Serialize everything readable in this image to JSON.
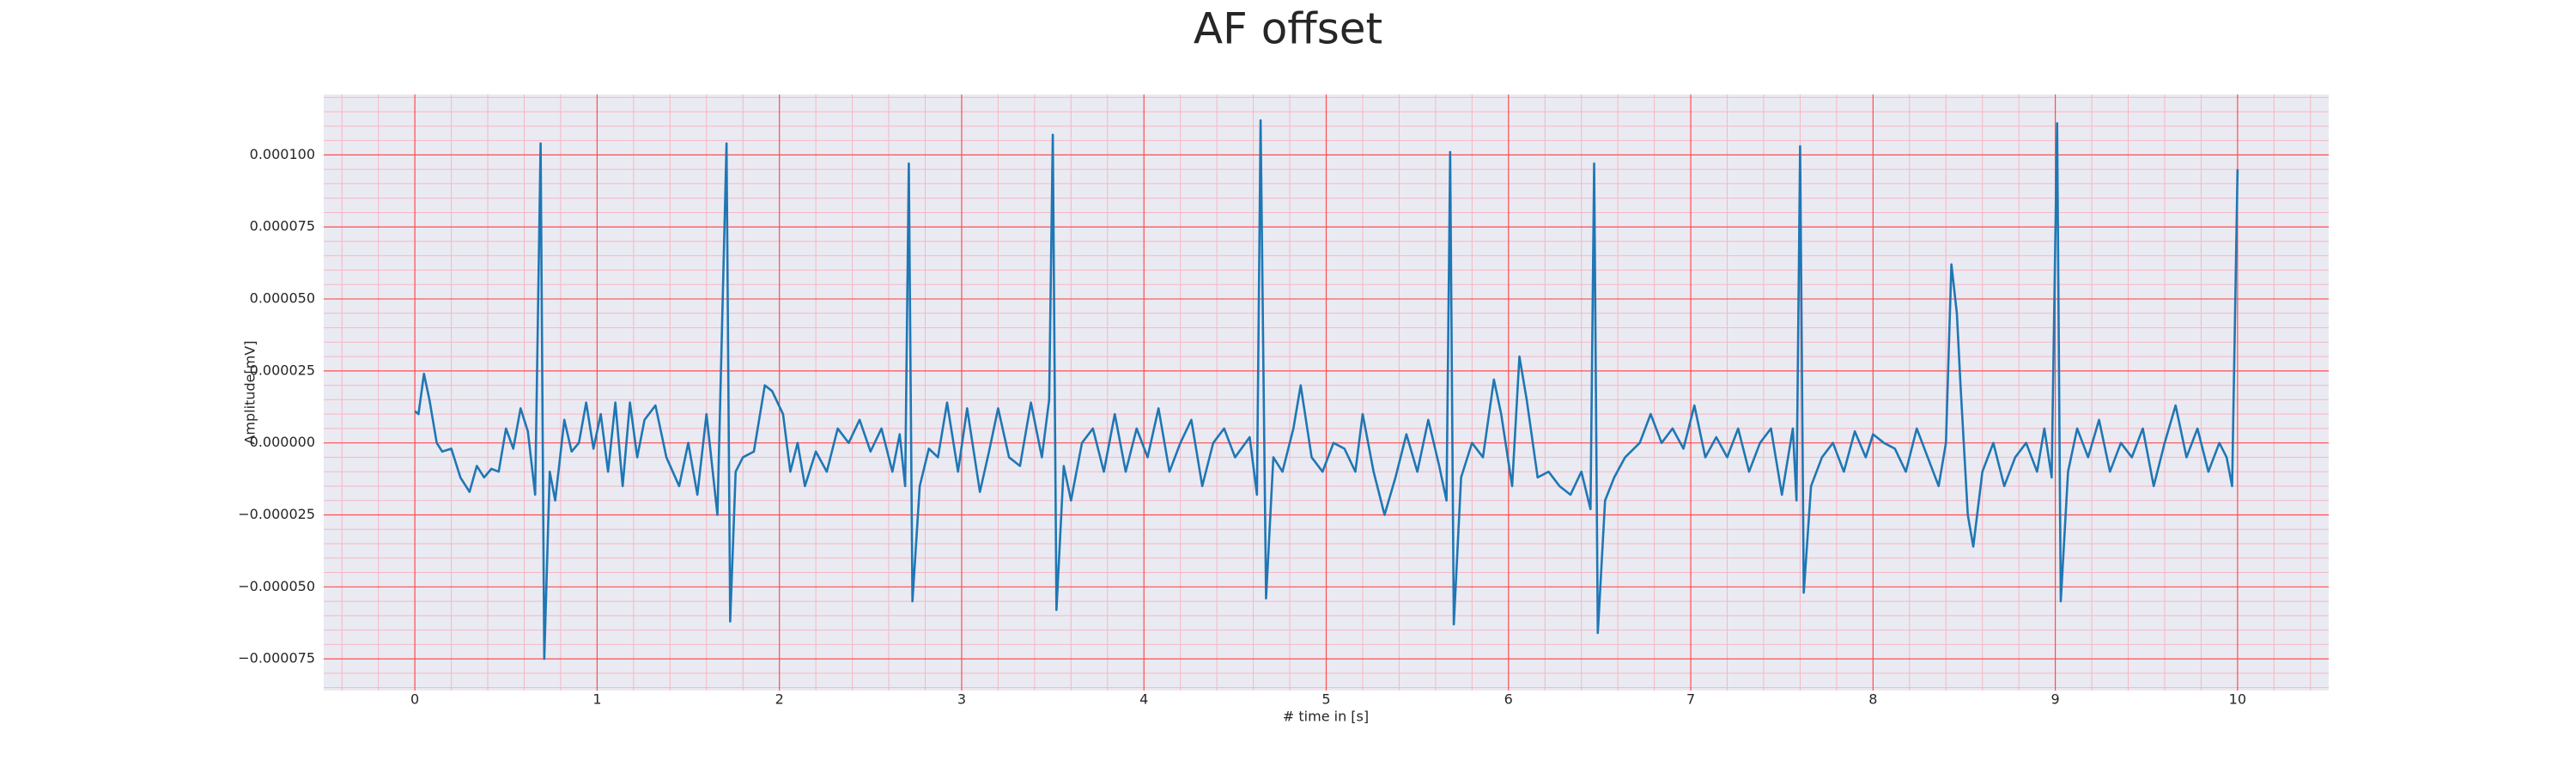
{
  "chart_data": {
    "type": "line",
    "title": "AF offset",
    "xlabel": "# time in [s]",
    "ylabel": "Amplitude[mV]",
    "grid": true,
    "minor_grid": true,
    "background": "#eaeaf2",
    "grid_color": "#ff4d4d",
    "minor_grid_color": "#f5b7c4",
    "xlim": [
      -0.5,
      10.5
    ],
    "ylim": [
      -8.6e-05,
      0.000121
    ],
    "xticks": [
      0,
      1,
      2,
      3,
      4,
      5,
      6,
      7,
      8,
      9,
      10
    ],
    "yticks": [
      {
        "value": -7.5e-05,
        "label": "−0.000075"
      },
      {
        "value": -5e-05,
        "label": "−0.000050"
      },
      {
        "value": -2.5e-05,
        "label": "−0.000025"
      },
      {
        "value": 0,
        "label": "0.000000"
      },
      {
        "value": 2.5e-05,
        "label": "0.000025"
      },
      {
        "value": 5e-05,
        "label": "0.000050"
      },
      {
        "value": 7.5e-05,
        "label": "0.000075"
      },
      {
        "value": 0.0001,
        "label": "0.000100"
      }
    ],
    "x": [
      0,
      0.02,
      0.05,
      0.08,
      0.12,
      0.15,
      0.2,
      0.25,
      0.3,
      0.34,
      0.38,
      0.42,
      0.46,
      0.5,
      0.54,
      0.58,
      0.62,
      0.66,
      0.69,
      0.71,
      0.74,
      0.77,
      0.82,
      0.86,
      0.9,
      0.94,
      0.98,
      1.02,
      1.06,
      1.1,
      1.14,
      1.18,
      1.22,
      1.26,
      1.32,
      1.38,
      1.45,
      1.5,
      1.55,
      1.6,
      1.66,
      1.71,
      1.73,
      1.76,
      1.8,
      1.86,
      1.92,
      1.96,
      2.02,
      2.06,
      2.1,
      2.14,
      2.2,
      2.26,
      2.32,
      2.38,
      2.44,
      2.5,
      2.56,
      2.62,
      2.66,
      2.69,
      2.71,
      2.73,
      2.77,
      2.82,
      2.87,
      2.92,
      2.98,
      3.03,
      3.1,
      3.15,
      3.2,
      3.26,
      3.32,
      3.38,
      3.44,
      3.48,
      3.5,
      3.52,
      3.56,
      3.6,
      3.66,
      3.72,
      3.78,
      3.84,
      3.9,
      3.96,
      4.02,
      4.08,
      4.14,
      4.2,
      4.26,
      4.32,
      4.38,
      4.44,
      4.5,
      4.58,
      4.62,
      4.64,
      4.67,
      4.71,
      4.76,
      4.82,
      4.86,
      4.92,
      4.98,
      5.04,
      5.1,
      5.16,
      5.2,
      5.26,
      5.32,
      5.38,
      5.44,
      5.5,
      5.56,
      5.62,
      5.66,
      5.68,
      5.7,
      5.74,
      5.8,
      5.86,
      5.92,
      5.96,
      6.02,
      6.06,
      6.1,
      6.16,
      6.22,
      6.28,
      6.34,
      6.4,
      6.45,
      6.47,
      6.49,
      6.53,
      6.58,
      6.64,
      6.72,
      6.78,
      6.84,
      6.9,
      6.96,
      7.02,
      7.08,
      7.14,
      7.2,
      7.26,
      7.32,
      7.38,
      7.44,
      7.5,
      7.56,
      7.58,
      7.6,
      7.62,
      7.66,
      7.72,
      7.78,
      7.84,
      7.9,
      7.96,
      8,
      8.06,
      8.12,
      8.18,
      8.24,
      8.3,
      8.36,
      8.4,
      8.43,
      8.46,
      8.48,
      8.52,
      8.55,
      8.6,
      8.66,
      8.72,
      8.78,
      8.84,
      8.9,
      8.94,
      8.98,
      9.01,
      9.03,
      9.07,
      9.12,
      9.18,
      9.24,
      9.3,
      9.36,
      9.42,
      9.48,
      9.54,
      9.6,
      9.66,
      9.72,
      9.78,
      9.84,
      9.9,
      9.94,
      9.97,
      10
    ],
    "series": [
      {
        "name": "AF offset",
        "color": "#1f77b4",
        "values": [
          1.1e-05,
          1e-05,
          2.4e-05,
          1.5e-05,
          0,
          -3e-06,
          -2e-06,
          -1.2e-05,
          -1.7e-05,
          -8e-06,
          -1.2e-05,
          -9e-06,
          -1e-05,
          5e-06,
          -2e-06,
          1.2e-05,
          4e-06,
          -1.8e-05,
          0.000104,
          -7.5e-05,
          -1e-05,
          -2e-05,
          8e-06,
          -3e-06,
          0,
          1.4e-05,
          -2e-06,
          1e-05,
          -1e-05,
          1.4e-05,
          -1.5e-05,
          1.4e-05,
          -5e-06,
          8e-06,
          1.3e-05,
          -5e-06,
          -1.5e-05,
          0,
          -1.8e-05,
          1e-05,
          -2.5e-05,
          0.000104,
          -6.2e-05,
          -1e-05,
          -5e-06,
          -3e-06,
          2e-05,
          1.8e-05,
          1e-05,
          -1e-05,
          0,
          -1.5e-05,
          -3e-06,
          -1e-05,
          5e-06,
          0,
          8e-06,
          -3e-06,
          5e-06,
          -1e-05,
          3e-06,
          -1.5e-05,
          9.7e-05,
          -5.5e-05,
          -1.5e-05,
          -2e-06,
          -5e-06,
          1.4e-05,
          -1e-05,
          1.2e-05,
          -1.7e-05,
          -3e-06,
          1.2e-05,
          -5e-06,
          -8e-06,
          1.4e-05,
          -5e-06,
          1.5e-05,
          0.000107,
          -5.8e-05,
          -8e-06,
          -2e-05,
          0,
          5e-06,
          -1e-05,
          1e-05,
          -1e-05,
          5e-06,
          -5e-06,
          1.2e-05,
          -1e-05,
          0,
          8e-06,
          -1.5e-05,
          0,
          5e-06,
          -5e-06,
          2e-06,
          -1.8e-05,
          0.000112,
          -5.4e-05,
          -5e-06,
          -1e-05,
          5e-06,
          2e-05,
          -5e-06,
          -1e-05,
          0,
          -2e-06,
          -1e-05,
          1e-05,
          -1e-05,
          -2.5e-05,
          -1.2e-05,
          3e-06,
          -1e-05,
          8e-06,
          -8e-06,
          -2e-05,
          0.000101,
          -6.3e-05,
          -1.2e-05,
          0,
          -5e-06,
          2.2e-05,
          1e-05,
          -1.5e-05,
          3e-05,
          1.5e-05,
          -1.2e-05,
          -1e-05,
          -1.5e-05,
          -1.8e-05,
          -1e-05,
          -2.3e-05,
          9.7e-05,
          -6.6e-05,
          -2e-05,
          -1.2e-05,
          -5e-06,
          0,
          1e-05,
          0,
          5e-06,
          -2e-06,
          1.3e-05,
          -5e-06,
          2e-06,
          -5e-06,
          5e-06,
          -1e-05,
          0,
          5e-06,
          -1.8e-05,
          5e-06,
          -2e-05,
          0.000103,
          -5.2e-05,
          -1.5e-05,
          -5e-06,
          0,
          -1e-05,
          4e-06,
          -5e-06,
          3e-06,
          0,
          -2e-06,
          -1e-05,
          5e-06,
          -5e-06,
          -1.5e-05,
          0,
          6.2e-05,
          4.5e-05,
          2e-05,
          -2.5e-05,
          -3.6e-05,
          -1e-05,
          0,
          -1.5e-05,
          -5e-06,
          0,
          -1e-05,
          5e-06,
          -1.2e-05,
          0.000111,
          -5.5e-05,
          -1e-05,
          5e-06,
          -5e-06,
          8e-06,
          -1e-05,
          0,
          -5e-06,
          5e-06,
          -1.5e-05,
          0,
          1.3e-05,
          -5e-06,
          5e-06,
          -1e-05,
          0,
          -5e-06,
          -1.5e-05,
          9.5e-05
        ]
      }
    ]
  }
}
